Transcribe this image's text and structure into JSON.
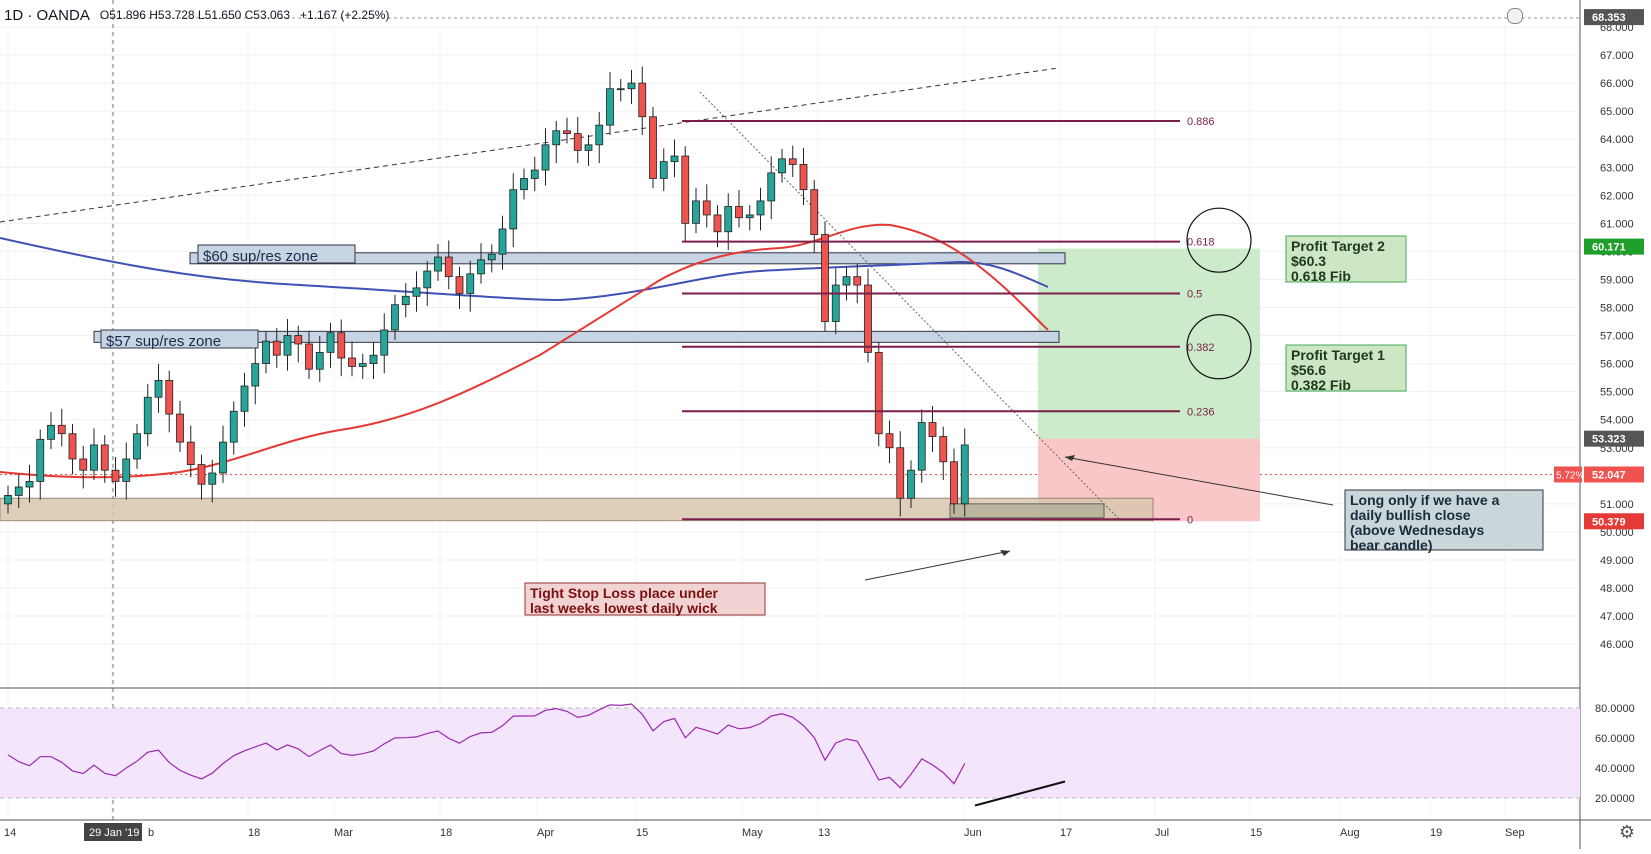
{
  "header": {
    "symbol": "1D · OANDA",
    "ohlc": "O51.896  H53.728  L51.650  C53.063",
    "change": "+1.167 (+2.25%)"
  },
  "price_axis": {
    "ticks": [
      "68.000",
      "67.000",
      "66.000",
      "65.000",
      "64.000",
      "63.000",
      "62.000",
      "61.000",
      "60.000",
      "59.000",
      "58.000",
      "57.000",
      "56.000",
      "55.000",
      "54.000",
      "53.000",
      "52.000",
      "51.000",
      "50.000",
      "49.000",
      "48.000",
      "47.000",
      "46.000"
    ],
    "badges": [
      {
        "label": "68.353",
        "bg": "#555555",
        "fg": "#ffffff",
        "price": 68.353
      },
      {
        "label": "60.171",
        "bg": "#1e9e2b",
        "fg": "#ffffff",
        "price": 60.171
      },
      {
        "label": "53.323",
        "bg": "#555555",
        "fg": "#ffffff",
        "price": 53.323
      },
      {
        "label": "52.047",
        "bg": "#ef5350",
        "fg": "#ffffff",
        "price": 52.047
      },
      {
        "label": "50.379",
        "bg": "#e53935",
        "fg": "#ffffff",
        "price": 50.379
      }
    ],
    "pct_badge": "5.72%"
  },
  "rsi_axis": {
    "ticks": [
      "80.0000",
      "60.0000",
      "40.0000",
      "20.0000"
    ]
  },
  "time_axis": {
    "labels": [
      "14",
      "29 Jan '19",
      "b",
      "18",
      "Mar",
      "18",
      "Apr",
      "15",
      "May",
      "13",
      "Jun",
      "17",
      "Jul",
      "15",
      "Aug",
      "19",
      "Sep"
    ]
  },
  "fib": {
    "levels": [
      {
        "label": "0.886",
        "price": 64.65
      },
      {
        "label": "0.618",
        "price": 60.35
      },
      {
        "label": "0.5",
        "price": 58.5
      },
      {
        "label": "0.382",
        "price": 56.6
      },
      {
        "label": "0.236",
        "price": 54.3
      },
      {
        "label": "0",
        "price": 50.45
      }
    ]
  },
  "annotations": {
    "zone60": "$60 sup/res zone",
    "zone57": "$57 sup/res zone",
    "target2": [
      "Profit Target 2",
      "$60.3",
      "0.618 Fib"
    ],
    "target1": [
      "Profit Target 1",
      "$56.6",
      "0.382 Fib"
    ],
    "long_note": [
      "Long only if we have a",
      "daily bullish close",
      "(above Wednesdays",
      "bear candle)"
    ],
    "stop_note": [
      "Tight Stop Loss place under",
      "last weeks lowest daily wick"
    ]
  },
  "colors": {
    "bull": "#26a69a",
    "bear": "#ef5350",
    "ma_fast": "#e53935",
    "ma_slow": "#3f51b5",
    "fib": "#7b1f4a",
    "rsi_line": "#9c27b0",
    "rsi_bg": "#f3e5fb"
  },
  "icons": {
    "settings": "gear-icon"
  },
  "chart_data": {
    "type": "candlestick",
    "series_order": "daily",
    "close_approx": [
      51.3,
      51.6,
      51.8,
      53.3,
      53.8,
      53.5,
      52.6,
      52.2,
      53.1,
      52.2,
      51.8,
      52.6,
      53.5,
      54.8,
      55.4,
      54.2,
      53.2,
      52.4,
      51.7,
      52.1,
      53.2,
      54.3,
      55.2,
      56.0,
      56.8,
      56.3,
      57.0,
      56.7,
      55.8,
      56.4,
      57.1,
      56.2,
      55.9,
      56.0,
      56.3,
      57.2,
      58.1,
      58.4,
      58.7,
      59.3,
      59.8,
      59.1,
      58.5,
      59.2,
      59.7,
      59.9,
      60.8,
      62.2,
      62.6,
      62.9,
      63.8,
      64.3,
      64.2,
      63.6,
      63.8,
      64.5,
      65.8,
      65.8,
      66.0,
      64.8,
      62.6,
      63.2,
      63.4,
      61.0,
      61.8,
      61.3,
      60.7,
      61.6,
      61.2,
      61.3,
      61.8,
      62.8,
      63.3,
      63.1,
      62.2,
      60.6,
      57.5,
      58.8,
      59.1,
      58.8,
      56.4,
      53.5,
      53.0,
      51.2,
      52.2,
      53.9,
      53.4,
      52.5,
      51.0,
      53.1
    ]
  }
}
